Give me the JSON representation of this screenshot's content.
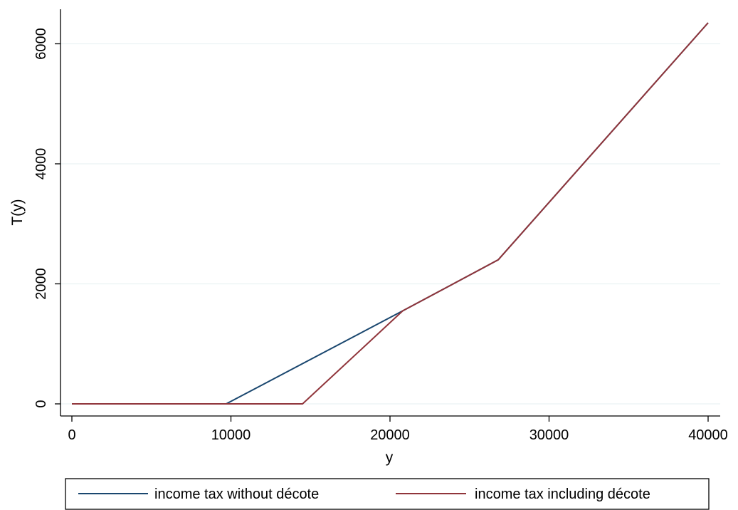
{
  "chart_data": {
    "type": "line",
    "title": "",
    "xlabel": "y",
    "ylabel": "T(y)",
    "xlim": [
      0,
      40000
    ],
    "ylim": [
      0,
      6350
    ],
    "xticks": [
      0,
      10000,
      20000,
      30000,
      40000
    ],
    "yticks": [
      0,
      2000,
      4000,
      6000
    ],
    "grid": "horizontal",
    "legend_position": "bottom",
    "series": [
      {
        "name": "income tax without décote",
        "color": "#1a476f",
        "x": [
          0,
          9700,
          20800,
          26800,
          40000
        ],
        "y": [
          0,
          0,
          1550,
          2400,
          6350
        ]
      },
      {
        "name": "income tax including décote",
        "color": "#90353b",
        "x": [
          0,
          14500,
          20800,
          26800,
          40000
        ],
        "y": [
          0,
          0,
          1550,
          2400,
          6350
        ]
      }
    ]
  }
}
